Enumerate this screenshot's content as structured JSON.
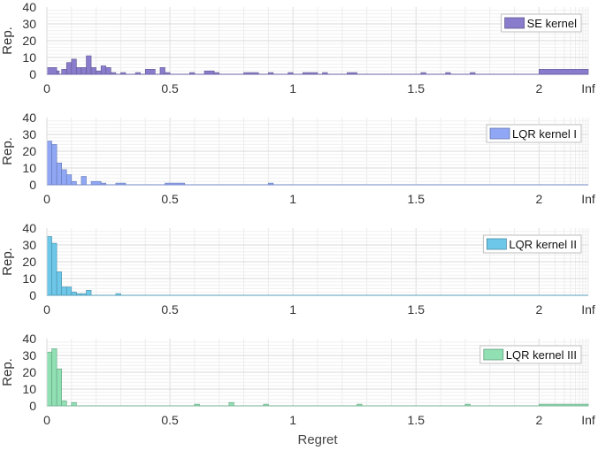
{
  "chart_data": [
    {
      "type": "bar",
      "title": "",
      "legend": "SE kernel",
      "legend_position": "top-right",
      "color": "#8a7ccc",
      "ylabel": "Rep.",
      "xlabel": "",
      "ylim": [
        0,
        40
      ],
      "yticks": [
        "0",
        "10",
        "20",
        "30",
        "40"
      ],
      "xticks": [
        "0",
        "0.5",
        "1",
        "1.5",
        "2",
        "Inf"
      ],
      "bins": [
        {
          "x": 0.0,
          "w": 0.04,
          "y": 4
        },
        {
          "x": 0.04,
          "w": 0.01,
          "y": 2
        },
        {
          "x": 0.06,
          "w": 0.02,
          "y": 3
        },
        {
          "x": 0.08,
          "w": 0.02,
          "y": 7
        },
        {
          "x": 0.1,
          "w": 0.02,
          "y": 9
        },
        {
          "x": 0.12,
          "w": 0.02,
          "y": 4
        },
        {
          "x": 0.14,
          "w": 0.02,
          "y": 4
        },
        {
          "x": 0.16,
          "w": 0.02,
          "y": 11
        },
        {
          "x": 0.18,
          "w": 0.02,
          "y": 4
        },
        {
          "x": 0.2,
          "w": 0.02,
          "y": 2
        },
        {
          "x": 0.22,
          "w": 0.02,
          "y": 5
        },
        {
          "x": 0.24,
          "w": 0.02,
          "y": 4
        },
        {
          "x": 0.26,
          "w": 0.02,
          "y": 1
        },
        {
          "x": 0.3,
          "w": 0.02,
          "y": 1
        },
        {
          "x": 0.36,
          "w": 0.02,
          "y": 1
        },
        {
          "x": 0.4,
          "w": 0.04,
          "y": 3
        },
        {
          "x": 0.46,
          "w": 0.02,
          "y": 4
        },
        {
          "x": 0.48,
          "w": 0.02,
          "y": 1
        },
        {
          "x": 0.58,
          "w": 0.02,
          "y": 1
        },
        {
          "x": 0.64,
          "w": 0.04,
          "y": 2
        },
        {
          "x": 0.68,
          "w": 0.02,
          "y": 1
        },
        {
          "x": 0.8,
          "w": 0.06,
          "y": 1
        },
        {
          "x": 0.9,
          "w": 0.02,
          "y": 1
        },
        {
          "x": 0.98,
          "w": 0.02,
          "y": 1
        },
        {
          "x": 1.04,
          "w": 0.06,
          "y": 1
        },
        {
          "x": 1.12,
          "w": 0.02,
          "y": 1
        },
        {
          "x": 1.22,
          "w": 0.04,
          "y": 1
        },
        {
          "x": 1.52,
          "w": 0.02,
          "y": 1
        },
        {
          "x": 1.62,
          "w": 0.02,
          "y": 1
        },
        {
          "x": 1.72,
          "w": 0.02,
          "y": 1
        },
        {
          "x": 2.0,
          "w": 0.2,
          "y": 3
        }
      ]
    },
    {
      "type": "bar",
      "title": "",
      "legend": "LQR kernel I",
      "legend_position": "top-right",
      "color": "#8fa7f5",
      "ylabel": "Rep.",
      "xlabel": "",
      "ylim": [
        0,
        40
      ],
      "yticks": [
        "0",
        "10",
        "20",
        "30",
        "40"
      ],
      "xticks": [
        "0",
        "0.5",
        "1",
        "1.5",
        "2",
        "Inf"
      ],
      "bins": [
        {
          "x": 0.0,
          "w": 0.02,
          "y": 26
        },
        {
          "x": 0.02,
          "w": 0.02,
          "y": 24
        },
        {
          "x": 0.04,
          "w": 0.02,
          "y": 13
        },
        {
          "x": 0.06,
          "w": 0.02,
          "y": 9
        },
        {
          "x": 0.08,
          "w": 0.02,
          "y": 6
        },
        {
          "x": 0.1,
          "w": 0.02,
          "y": 2
        },
        {
          "x": 0.14,
          "w": 0.02,
          "y": 5
        },
        {
          "x": 0.18,
          "w": 0.04,
          "y": 2
        },
        {
          "x": 0.22,
          "w": 0.02,
          "y": 1
        },
        {
          "x": 0.28,
          "w": 0.04,
          "y": 1
        },
        {
          "x": 0.48,
          "w": 0.08,
          "y": 1
        },
        {
          "x": 0.9,
          "w": 0.02,
          "y": 1
        }
      ]
    },
    {
      "type": "bar",
      "title": "",
      "legend": "LQR kernel II",
      "legend_position": "top-right",
      "color": "#6cc7e8",
      "ylabel": "Rep.",
      "xlabel": "",
      "ylim": [
        0,
        40
      ],
      "yticks": [
        "0",
        "10",
        "20",
        "30",
        "40"
      ],
      "xticks": [
        "0",
        "0.5",
        "1",
        "1.5",
        "2",
        "Inf"
      ],
      "bins": [
        {
          "x": 0.0,
          "w": 0.02,
          "y": 35
        },
        {
          "x": 0.02,
          "w": 0.02,
          "y": 31
        },
        {
          "x": 0.04,
          "w": 0.02,
          "y": 14
        },
        {
          "x": 0.06,
          "w": 0.02,
          "y": 5
        },
        {
          "x": 0.08,
          "w": 0.02,
          "y": 5
        },
        {
          "x": 0.1,
          "w": 0.02,
          "y": 2
        },
        {
          "x": 0.12,
          "w": 0.02,
          "y": 1
        },
        {
          "x": 0.14,
          "w": 0.02,
          "y": 1
        },
        {
          "x": 0.16,
          "w": 0.02,
          "y": 3
        },
        {
          "x": 0.28,
          "w": 0.02,
          "y": 1
        }
      ]
    },
    {
      "type": "bar",
      "title": "",
      "legend": "LQR kernel III",
      "legend_position": "top-right",
      "color": "#90e0b4",
      "ylabel": "Rep.",
      "xlabel": "Regret",
      "ylim": [
        0,
        40
      ],
      "yticks": [
        "0",
        "10",
        "20",
        "30",
        "40"
      ],
      "xticks": [
        "0",
        "0.5",
        "1",
        "1.5",
        "2",
        "Inf"
      ],
      "bins": [
        {
          "x": 0.0,
          "w": 0.02,
          "y": 32
        },
        {
          "x": 0.02,
          "w": 0.02,
          "y": 34
        },
        {
          "x": 0.04,
          "w": 0.02,
          "y": 22
        },
        {
          "x": 0.06,
          "w": 0.02,
          "y": 3
        },
        {
          "x": 0.1,
          "w": 0.02,
          "y": 2
        },
        {
          "x": 0.6,
          "w": 0.02,
          "y": 1
        },
        {
          "x": 0.74,
          "w": 0.02,
          "y": 2
        },
        {
          "x": 0.88,
          "w": 0.02,
          "y": 1
        },
        {
          "x": 1.26,
          "w": 0.02,
          "y": 1
        },
        {
          "x": 1.7,
          "w": 0.02,
          "y": 1
        },
        {
          "x": 2.0,
          "w": 0.2,
          "y": 1
        }
      ]
    }
  ]
}
